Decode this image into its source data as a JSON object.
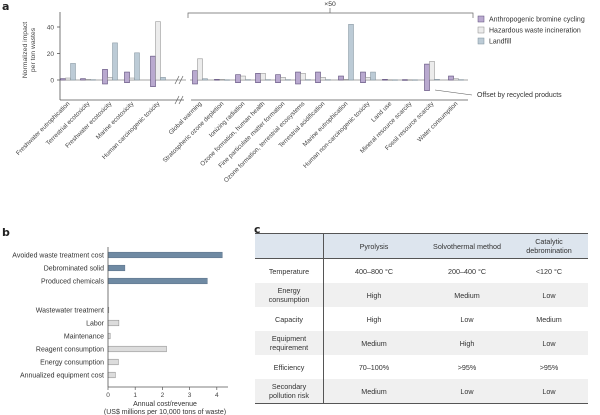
{
  "panel_labels": {
    "a": "a",
    "b": "b",
    "c": "c"
  },
  "chart_data": [
    {
      "id": "a",
      "type": "bar",
      "title": "",
      "ylabel": "Normalized impact per ton wastes",
      "ylabel_lines": [
        "Normalized impact",
        "per ton wastes"
      ],
      "ylim": [
        -14,
        50
      ],
      "yticks": [
        0,
        20,
        40
      ],
      "scale_annotation": "×50",
      "offset_annotation": "Offset by recycled products",
      "legend_position": "top-right",
      "series": [
        {
          "name": "Anthropogenic bromine cycling",
          "color": "#b9a9cf",
          "stroke": "#5a4a78"
        },
        {
          "name": "Hazardous waste incineration",
          "color": "#ececec",
          "stroke": "#888888"
        },
        {
          "name": "Landfill",
          "color": "#bccbd6",
          "stroke": "#7f8f9a"
        }
      ],
      "categories": [
        "Freshwater eutrophication",
        "Terrestrial ecotoxicity",
        "Freshwater ecotoxicity",
        "Marine ecotoxicity",
        "Human carcinogenic toxicity",
        "Global warming",
        "Stratospheric ozone depletion",
        "Ionizing radiation",
        "Ozone formation, human health",
        "Fine particulate matter formation",
        "Ozone formation, terrestrial ecosystems",
        "Terrestrial acidification",
        "Marine eutrophication",
        "Human non-carcinogenic toxicity",
        "Land use",
        "Mineral resource scarcity",
        "Fossil resource scarcity",
        "Water consumption"
      ],
      "break_after_index": 4,
      "values": {
        "Anthropogenic bromine cycling": [
          1,
          1,
          8,
          6,
          18,
          7,
          0.5,
          4,
          5,
          4,
          6,
          6,
          3,
          6,
          0.5,
          0.3,
          12,
          3
        ],
        "Anthropogenic bromine cycling offset": [
          0,
          0,
          -3,
          -2,
          -5,
          -3,
          0,
          -2,
          -2,
          -2,
          -3,
          -2,
          0,
          -2,
          0,
          0,
          -8,
          0
        ],
        "Hazardous waste incineration": [
          1.5,
          0.5,
          2,
          1.5,
          44,
          16,
          0.5,
          3,
          5,
          2,
          5,
          2,
          0.5,
          2,
          0.2,
          0.2,
          14,
          1
        ],
        "Landfill": [
          12.5,
          0.3,
          28,
          20.5,
          2,
          1,
          0.2,
          0.3,
          0.3,
          0.3,
          0.3,
          0.3,
          42,
          6,
          0.2,
          0.2,
          0.5,
          0.3
        ]
      }
    },
    {
      "id": "b",
      "type": "bar",
      "orientation": "horizontal",
      "title": "",
      "xlabel": "Annual cost/revenue",
      "xlabel2": "(US$ millions per 10,000 tons of waste)",
      "xlim": [
        0,
        4.5
      ],
      "xticks": [
        0,
        1,
        2,
        3,
        4
      ],
      "groups": [
        {
          "name": "revenue",
          "color": "#6f8aa3",
          "categories": [
            "Avoided waste treatment cost",
            "Debrominated solid",
            "Produced chemicals"
          ],
          "values": [
            4.2,
            0.62,
            3.65
          ]
        },
        {
          "name": "cost",
          "color": "#dcdcdc",
          "categories": [
            "Wastewater treatment",
            "Labor",
            "Maintenance",
            "Reagent consumption",
            "Energy consumption",
            "Annualized equipment cost"
          ],
          "values": [
            0.02,
            0.4,
            0.08,
            2.15,
            0.38,
            0.27
          ]
        }
      ]
    },
    {
      "id": "c",
      "type": "table",
      "columns": [
        "",
        "Pyrolysis",
        "Solvothermal method",
        "Catalytic debromination"
      ],
      "rows": [
        [
          "Temperature",
          "400–800 °C",
          "200–400 °C",
          "<120 °C"
        ],
        [
          "Energy consumption",
          "High",
          "Medium",
          "Low"
        ],
        [
          "Capacity",
          "High",
          "Low",
          "Medium"
        ],
        [
          "Equipment requirement",
          "Medium",
          "High",
          "Low"
        ],
        [
          "Efficiency",
          "70–100%",
          ">95%",
          ">95%"
        ],
        [
          "Secondary pollution risk",
          "Medium",
          "Low",
          "Low"
        ]
      ]
    }
  ]
}
